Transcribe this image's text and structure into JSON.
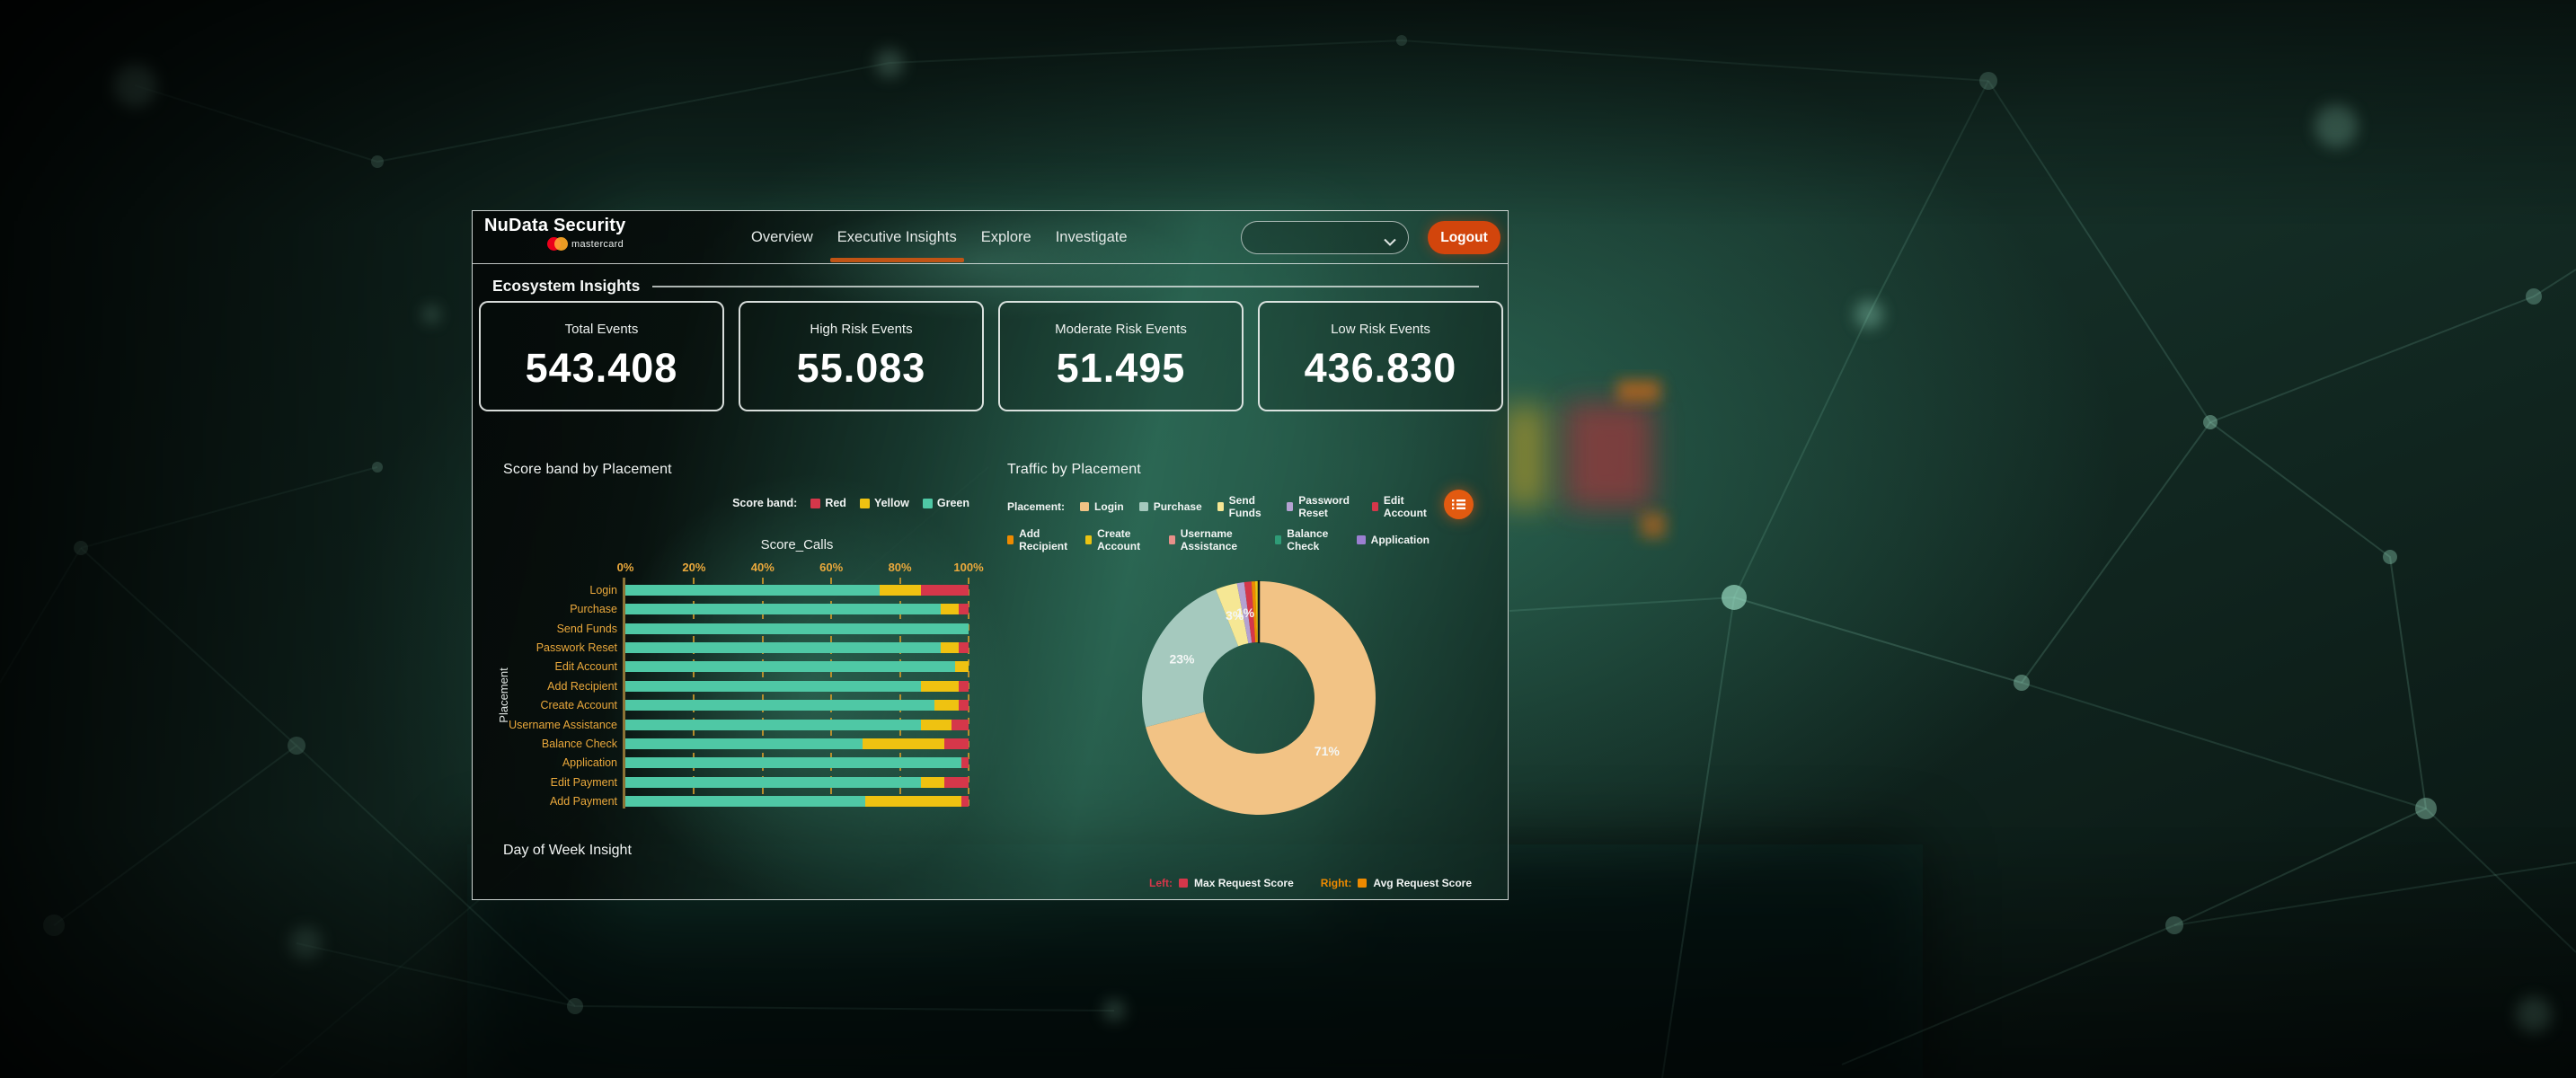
{
  "header": {
    "brand_title": "NuData Security",
    "brand_subtitle": "mastercard",
    "nav": [
      {
        "label": "Overview",
        "active": false
      },
      {
        "label": "Executive Insights",
        "active": true
      },
      {
        "label": "Explore",
        "active": false
      },
      {
        "label": "Investigate",
        "active": false
      }
    ],
    "dropdown_value": "",
    "logout_label": "Logout"
  },
  "section_title": "Ecosystem Insights",
  "stat_cards": [
    {
      "label": "Total Events",
      "value": "543.408"
    },
    {
      "label": "High Risk Events",
      "value": "55.083"
    },
    {
      "label": "Moderate Risk Events",
      "value": "51.495"
    },
    {
      "label": "Low Risk Events",
      "value": "436.830"
    }
  ],
  "score_band_chart": {
    "title": "Score band by Placement",
    "legend_title": "Score band:",
    "legend_entries": [
      {
        "label": "Red",
        "color": "#D5374A"
      },
      {
        "label": "Yellow",
        "color": "#EFC211"
      },
      {
        "label": "Green",
        "color": "#4FC8A5"
      }
    ],
    "axis_title": "Score_Calls",
    "y_axis_label": "Placement"
  },
  "traffic_chart": {
    "title": "Traffic by Placement",
    "legend_title": "Placement:"
  },
  "day_of_week": {
    "title": "Day of Week Insight",
    "legend": [
      {
        "prefix": "Left:",
        "prefix_color": "#D5374A",
        "chip_color": "#D5374A",
        "label": "Max Request Score"
      },
      {
        "prefix": "Right:",
        "prefix_color": "#EE8A00",
        "chip_color": "#EE8A00",
        "label": "Avg Request Score"
      }
    ]
  },
  "icons": {
    "dropdown_chevron": "chevron-down",
    "traffic_menu_button": "list"
  },
  "colors": {
    "accent_orange": "#D2450C",
    "nav_underline": "#C05415",
    "tick_label": "#EBA93C",
    "gridline": "#C8962A",
    "axis_line": "#8C7335"
  },
  "chart_data": [
    {
      "type": "bar",
      "title": "Score band by Placement",
      "orientation": "horizontal",
      "stacked": true,
      "xlabel": "Score_Calls",
      "ylabel": "Placement",
      "xlim": [
        0,
        100
      ],
      "x_ticks": [
        "0%",
        "20%",
        "40%",
        "60%",
        "80%",
        "100%"
      ],
      "grid": "dashed-vertical",
      "legend_position": "top-right",
      "categories": [
        "Login",
        "Purchase",
        "Send Funds",
        "Passwork Reset",
        "Edit Account",
        "Add Recipient",
        "Create Account",
        "Username Assistance",
        "Balance Check",
        "Application",
        "Edit Payment",
        "Add Payment"
      ],
      "series": [
        {
          "name": "Green",
          "color": "#4FC8A5",
          "values": [
            74,
            92,
            100,
            92,
            96,
            86,
            90,
            86,
            69,
            98,
            86,
            70
          ]
        },
        {
          "name": "Yellow",
          "color": "#EFC211",
          "values": [
            12,
            5,
            0,
            5,
            4,
            11,
            7,
            9,
            24,
            0,
            7,
            28
          ]
        },
        {
          "name": "Red",
          "color": "#D5374A",
          "values": [
            14,
            3,
            0,
            3,
            0,
            3,
            3,
            5,
            7,
            2,
            7,
            2
          ]
        }
      ]
    },
    {
      "type": "pie",
      "title": "Traffic by Placement",
      "donut": true,
      "legend_title": "Placement:",
      "legend_position": "top",
      "slices": [
        {
          "label": "Login",
          "pct": 71,
          "color": "#F2C385",
          "show_label": true
        },
        {
          "label": "Purchase",
          "pct": 23,
          "color": "#A5C9BE",
          "show_label": true
        },
        {
          "label": "Send Funds",
          "pct": 3,
          "color": "#F6E794",
          "show_label": true
        },
        {
          "label": "Password Reset",
          "pct": 1,
          "color": "#B4A2D2",
          "show_label": true
        },
        {
          "label": "Edit Account",
          "pct": 1,
          "color": "#D5374A",
          "show_label": false
        },
        {
          "label": "Add Recipient",
          "pct": 0.5,
          "color": "#EE8A00",
          "show_label": false
        },
        {
          "label": "Create Account",
          "pct": 0.4,
          "color": "#EAC313",
          "show_label": false
        },
        {
          "label": "Username Assistance",
          "pct": 0.04,
          "color": "#E89089",
          "show_label": false
        },
        {
          "label": "Balance Check",
          "pct": 0.03,
          "color": "#2F9C77",
          "show_label": false
        },
        {
          "label": "Application",
          "pct": 0.03,
          "color": "#9B7FD1",
          "show_label": false
        }
      ]
    }
  ]
}
